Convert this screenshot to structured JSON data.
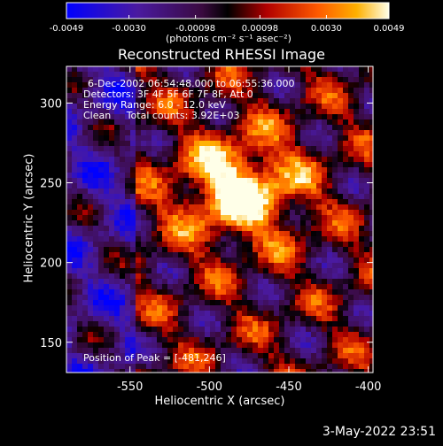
{
  "colorbar": {
    "tick_labels": [
      "-0.0049",
      "-0.0030",
      "-0.00098",
      "0.00098",
      "0.0030",
      "0.0049"
    ],
    "ticks": [
      -0.0049,
      -0.003,
      -0.00098,
      0.00098,
      0.003,
      0.0049
    ],
    "range": [
      -0.0049,
      0.0049
    ],
    "units_text": "(photons cm⁻² s⁻¹ asec⁻²)"
  },
  "title": "Reconstructed RHESSI Image",
  "annotations": {
    "time": "6-Dec-2002 06:54:48.000 to 06:55:36.000",
    "detectors": "Detectors: 3F 4F 5F 6F 7F 8F, Att 0",
    "energy": "Energy Range: 6.0 - 12.0 keV",
    "clean": "Clean     Total counts: 3.92E+03",
    "peak": "Position of Peak = [-481,246]"
  },
  "footer_date": "3-May-2022 23:51",
  "chart_data": {
    "type": "heatmap",
    "title": "Reconstructed RHESSI Image",
    "xlabel": "Heliocentric X (arcsec)",
    "ylabel": "Heliocentric Y (arcsec)",
    "xlim": [
      -590,
      -397
    ],
    "ylim": [
      131,
      323
    ],
    "x_ticks": [
      -550,
      -500,
      -450,
      -400
    ],
    "y_ticks": [
      150,
      200,
      250,
      300
    ],
    "x_tick_labels": [
      "-550",
      "-500",
      "-450",
      "-400"
    ],
    "y_tick_labels": [
      "150",
      "200",
      "250",
      "300"
    ],
    "peak": [
      -481,
      246
    ],
    "value_range": [
      -0.0049,
      0.0049
    ],
    "colors": {
      "background": "#000000",
      "low": "#0000ff",
      "mid_low": "#5a2a9a",
      "zero": "#000000",
      "mid_high": "#c81e00",
      "high": "#ff9a00",
      "max": "#ffffe0"
    }
  }
}
